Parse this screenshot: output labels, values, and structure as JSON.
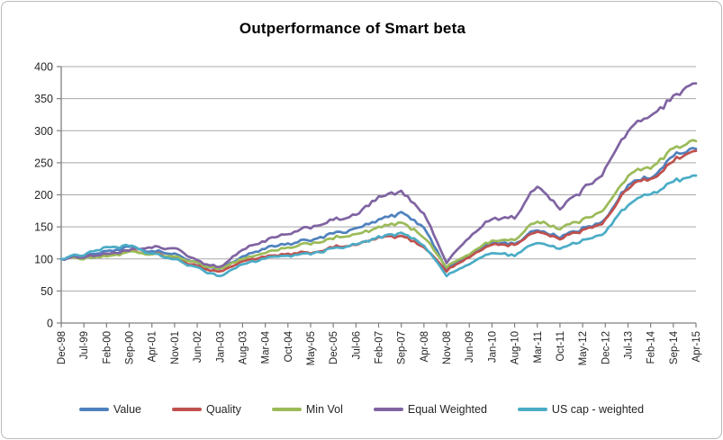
{
  "chart_data": {
    "type": "line",
    "title": "Outperformance of Smart beta",
    "x_labels": [
      "Dec-98",
      "Jul-99",
      "Feb-00",
      "Sep-00",
      "Apr-01",
      "Nov-01",
      "Jun-02",
      "Jan-03",
      "Aug-03",
      "Mar-04",
      "Oct-04",
      "May-05",
      "Dec-05",
      "Jul-06",
      "Feb-07",
      "Sep-07",
      "Apr-08",
      "Nov-08",
      "Jun-09",
      "Jan-10",
      "Aug-10",
      "Mar-11",
      "Oct-11",
      "May-12",
      "Dec-12",
      "Jul-13",
      "Feb-14",
      "Sep-14",
      "Apr-15"
    ],
    "months_per_label": 7,
    "y_axis": {
      "min": 0,
      "max": 400,
      "step": 50,
      "ticks": [
        "0",
        "50",
        "100",
        "150",
        "200",
        "250",
        "300",
        "350",
        "400"
      ]
    },
    "grid": "horizontal",
    "legend_position": "bottom",
    "axis_color": "#7f7f7f",
    "grid_color": "#a8a8a8",
    "label_color": "#262626",
    "series": [
      {
        "name": "Value",
        "color": "#4F81BD",
        "values": [
          100,
          106,
          112,
          118,
          111,
          108,
          92,
          84,
          104,
          117,
          122,
          130,
          140,
          146,
          160,
          172,
          150,
          85,
          105,
          126,
          124,
          146,
          135,
          147,
          162,
          216,
          227,
          262,
          272
        ]
      },
      {
        "name": "Quality",
        "color": "#C0504D",
        "values": [
          100,
          104,
          106,
          112,
          108,
          102,
          88,
          80,
          96,
          104,
          106,
          110,
          118,
          122,
          132,
          135,
          120,
          82,
          103,
          123,
          122,
          144,
          132,
          144,
          160,
          212,
          225,
          253,
          268
        ]
      },
      {
        "name": "Min Vol",
        "color": "#9BBB59",
        "values": [
          100,
          102,
          104,
          110,
          106,
          104,
          92,
          85,
          100,
          110,
          116,
          124,
          132,
          138,
          148,
          156,
          136,
          87,
          108,
          128,
          130,
          160,
          148,
          161,
          180,
          230,
          244,
          274,
          283
        ]
      },
      {
        "name": "Equal Weighted",
        "color": "#8064A2",
        "values": [
          100,
          104,
          108,
          113,
          118,
          117,
          96,
          87,
          115,
          129,
          138,
          150,
          160,
          168,
          195,
          205,
          172,
          95,
          135,
          163,
          165,
          215,
          180,
          207,
          240,
          300,
          323,
          354,
          373
        ]
      },
      {
        "name": "US cap - weighted",
        "color": "#4BACC6",
        "values": [
          100,
          108,
          118,
          120,
          108,
          100,
          85,
          73,
          92,
          101,
          104,
          109,
          116,
          122,
          133,
          140,
          123,
          74,
          92,
          110,
          106,
          126,
          117,
          128,
          142,
          185,
          202,
          220,
          230
        ]
      }
    ]
  }
}
